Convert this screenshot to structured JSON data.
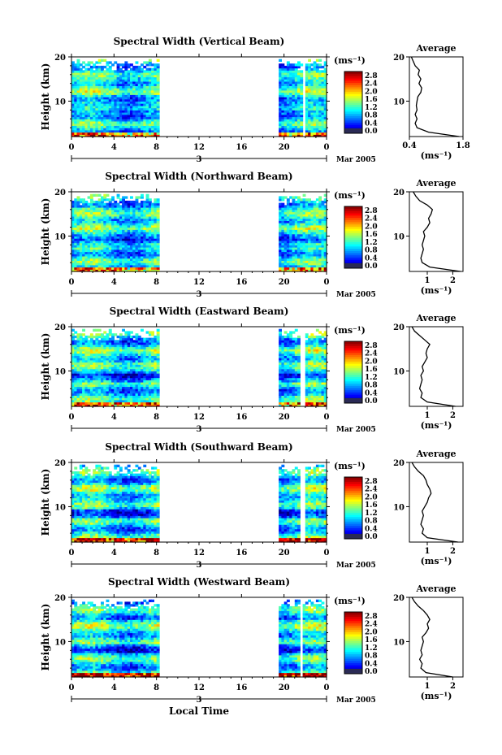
{
  "figure": {
    "xlabel": "Local Time",
    "date_label": "Mar 2005",
    "day_label": "3",
    "ylabel": "Height (km)",
    "cbar_unit": "(ms⁻¹)",
    "avg_title": "Average",
    "avg_xlabel": "(ms⁻¹)"
  },
  "chart_data": [
    {
      "type": "heatmap",
      "title": "Spectral Width (Vertical Beam)",
      "xticks": [
        "0",
        "4",
        "8",
        "12",
        "16",
        "20",
        "0"
      ],
      "xlim": [
        0,
        24
      ],
      "yticks": [
        "20",
        "10"
      ],
      "ylim": [
        2,
        20
      ],
      "data_gaps_hours": [
        [
          8.3,
          19.6
        ],
        [
          21.7,
          22.0
        ]
      ],
      "colorbar": {
        "ticks": [
          "2.8",
          "2.4",
          "2.0",
          "1.6",
          "1.2",
          "0.8",
          "0.4",
          "0.0"
        ],
        "range": [
          0,
          2.8
        ]
      },
      "average_profile": {
        "xticks": [
          "0.4",
          "1.8"
        ],
        "xlim": [
          0.4,
          1.8
        ],
        "yticks": [
          "20",
          "10"
        ],
        "ylim": [
          2,
          20
        ],
        "height_km": [
          2,
          3,
          4,
          5,
          6,
          7,
          8,
          9,
          10,
          11,
          12,
          13,
          14,
          15,
          16,
          17,
          18,
          19,
          20
        ],
        "width_ms": [
          1.7,
          0.9,
          0.6,
          0.55,
          0.6,
          0.55,
          0.6,
          0.58,
          0.6,
          0.62,
          0.7,
          0.72,
          0.65,
          0.7,
          0.63,
          0.66,
          0.55,
          0.5,
          0.45
        ]
      }
    },
    {
      "type": "heatmap",
      "title": "Spectral Width (Northward Beam)",
      "xticks": [
        "0",
        "4",
        "8",
        "12",
        "16",
        "20",
        "0"
      ],
      "xlim": [
        0,
        24
      ],
      "yticks": [
        "20",
        "10"
      ],
      "ylim": [
        2,
        20
      ],
      "data_gaps_hours": [
        [
          8.3,
          19.6
        ]
      ],
      "colorbar": {
        "ticks": [
          "2.8",
          "2.4",
          "2.0",
          "1.6",
          "1.2",
          "0.8",
          "0.4",
          "0.0"
        ],
        "range": [
          0,
          2.8
        ]
      },
      "average_profile": {
        "xticks": [
          "1",
          "2"
        ],
        "xlim": [
          0.3,
          2.4
        ],
        "yticks": [
          "20",
          "10"
        ],
        "ylim": [
          2,
          20
        ],
        "height_km": [
          2,
          3,
          4,
          5,
          6,
          7,
          8,
          9,
          10,
          11,
          12,
          13,
          14,
          15,
          16,
          17,
          18,
          19,
          20
        ],
        "width_ms": [
          2.3,
          1.1,
          0.8,
          0.75,
          0.8,
          0.85,
          0.8,
          0.85,
          0.9,
          0.85,
          1.0,
          1.1,
          1.05,
          1.15,
          1.2,
          1.0,
          0.7,
          0.55,
          0.45
        ]
      }
    },
    {
      "type": "heatmap",
      "title": "Spectral Width (Eastward Beam)",
      "xticks": [
        "0",
        "4",
        "8",
        "12",
        "16",
        "20",
        "0"
      ],
      "xlim": [
        0,
        24
      ],
      "yticks": [
        "20",
        "10"
      ],
      "ylim": [
        2,
        20
      ],
      "data_gaps_hours": [
        [
          8.3,
          19.6
        ],
        [
          21.6,
          21.9
        ]
      ],
      "colorbar": {
        "ticks": [
          "2.8",
          "2.4",
          "2.0",
          "1.6",
          "1.2",
          "0.8",
          "0.4",
          "0.0"
        ],
        "range": [
          0,
          2.8
        ]
      },
      "average_profile": {
        "xticks": [
          "1",
          "2"
        ],
        "xlim": [
          0.3,
          2.4
        ],
        "yticks": [
          "20",
          "10"
        ],
        "ylim": [
          2,
          20
        ],
        "height_km": [
          2,
          3,
          4,
          5,
          6,
          7,
          8,
          9,
          10,
          11,
          12,
          13,
          14,
          15,
          16,
          17,
          18,
          19,
          20
        ],
        "width_ms": [
          2.1,
          1.0,
          0.75,
          0.8,
          0.7,
          0.75,
          0.8,
          0.75,
          0.85,
          0.8,
          0.9,
          1.0,
          0.95,
          1.0,
          1.1,
          0.9,
          0.7,
          0.5,
          0.4
        ]
      }
    },
    {
      "type": "heatmap",
      "title": "Spectral Width (Southward Beam)",
      "xticks": [
        "0",
        "4",
        "8",
        "12",
        "16",
        "20",
        "0"
      ],
      "xlim": [
        0,
        24
      ],
      "yticks": [
        "20",
        "10"
      ],
      "ylim": [
        2,
        20
      ],
      "data_gaps_hours": [
        [
          8.3,
          19.6
        ],
        [
          21.6,
          21.9
        ]
      ],
      "colorbar": {
        "ticks": [
          "2.8",
          "2.4",
          "2.0",
          "1.6",
          "1.2",
          "0.8",
          "0.4",
          "0.0"
        ],
        "range": [
          0,
          2.8
        ]
      },
      "average_profile": {
        "xticks": [
          "1",
          "2"
        ],
        "xlim": [
          0.3,
          2.4
        ],
        "yticks": [
          "20",
          "10"
        ],
        "ylim": [
          2,
          20
        ],
        "height_km": [
          2,
          3,
          4,
          5,
          6,
          7,
          8,
          9,
          10,
          11,
          12,
          13,
          14,
          15,
          16,
          17,
          18,
          19,
          20
        ],
        "width_ms": [
          2.2,
          1.0,
          0.8,
          0.85,
          0.75,
          0.8,
          0.85,
          0.8,
          0.9,
          1.0,
          1.05,
          1.15,
          1.1,
          1.0,
          0.95,
          0.85,
          0.65,
          0.5,
          0.4
        ]
      }
    },
    {
      "type": "heatmap",
      "title": "Spectral Width (Westward Beam)",
      "xticks": [
        "0",
        "4",
        "8",
        "12",
        "16",
        "20",
        "0"
      ],
      "xlim": [
        0,
        24
      ],
      "yticks": [
        "20",
        "10"
      ],
      "ylim": [
        2,
        20
      ],
      "data_gaps_hours": [
        [
          8.3,
          19.6
        ],
        [
          21.5,
          21.8
        ]
      ],
      "colorbar": {
        "ticks": [
          "2.8",
          "2.4",
          "2.0",
          "1.6",
          "1.2",
          "0.8",
          "0.4",
          "0.0"
        ],
        "range": [
          0,
          2.8
        ]
      },
      "average_profile": {
        "xticks": [
          "1",
          "2"
        ],
        "xlim": [
          0.3,
          2.4
        ],
        "yticks": [
          "20",
          "10"
        ],
        "ylim": [
          2,
          20
        ],
        "height_km": [
          2,
          3,
          4,
          5,
          6,
          7,
          8,
          9,
          10,
          11,
          12,
          13,
          14,
          15,
          16,
          17,
          18,
          19,
          20
        ],
        "width_ms": [
          2.0,
          0.95,
          0.75,
          0.8,
          0.7,
          0.8,
          0.75,
          0.8,
          0.85,
          0.8,
          0.95,
          1.05,
          1.0,
          1.1,
          1.0,
          0.85,
          0.65,
          0.5,
          0.4
        ]
      }
    }
  ]
}
